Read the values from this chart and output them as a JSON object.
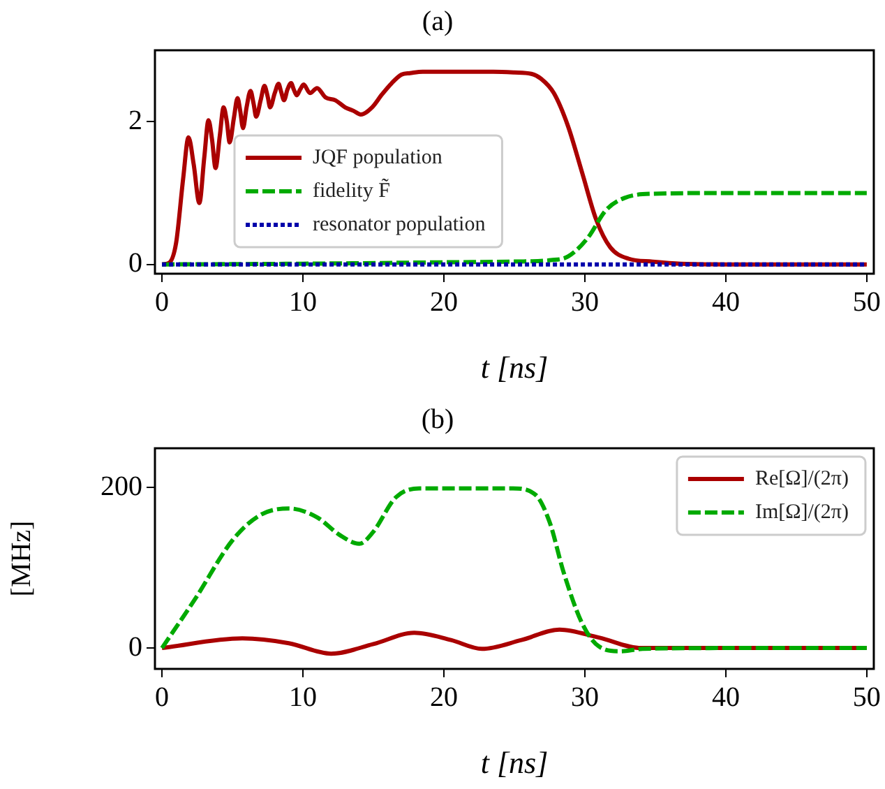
{
  "chart_data": [
    {
      "type": "line",
      "title": "(a)",
      "xlabel": "t [ns]",
      "xlim": [
        -0.5,
        50.5
      ],
      "xticks": [
        0,
        10,
        20,
        30,
        40,
        50
      ],
      "ylim": [
        -0.13,
        3.0
      ],
      "yticks": [
        0,
        2
      ],
      "grid": false,
      "legend": "lower left",
      "marker": "none",
      "series": [
        {
          "name": "JQF population",
          "color": "#aa0000",
          "line_style": "solid",
          "x": [
            0,
            0.5,
            1,
            1.5,
            1.88,
            2.25,
            2.65,
            3.0,
            3.3,
            3.55,
            3.8,
            4.1,
            4.37,
            4.6,
            4.8,
            5.1,
            5.36,
            5.55,
            5.75,
            6.0,
            6.28,
            6.5,
            6.68,
            7.0,
            7.27,
            7.5,
            7.67,
            8.0,
            8.27,
            8.45,
            8.66,
            8.9,
            9.16,
            9.35,
            9.56,
            9.8,
            10.05,
            10.5,
            11,
            11.6,
            12.3,
            13,
            13.6,
            14.1,
            14.9,
            15.6,
            16.3,
            17,
            17.6,
            18.5,
            19.5,
            21.5,
            23.5,
            25,
            26.2,
            26.9,
            27.8,
            28.8,
            29.8,
            30.8,
            31.8,
            33.1,
            34.8,
            36.8,
            40,
            45,
            50
          ],
          "values": [
            0,
            0.02,
            0.3,
            1.2,
            1.78,
            1.4,
            0.86,
            1.5,
            2.02,
            1.75,
            1.35,
            1.8,
            2.2,
            2.0,
            1.71,
            2.05,
            2.33,
            2.15,
            1.91,
            2.2,
            2.43,
            2.25,
            2.07,
            2.3,
            2.5,
            2.35,
            2.2,
            2.4,
            2.53,
            2.42,
            2.3,
            2.45,
            2.54,
            2.45,
            2.37,
            2.45,
            2.52,
            2.4,
            2.47,
            2.34,
            2.3,
            2.2,
            2.15,
            2.1,
            2.2,
            2.38,
            2.54,
            2.66,
            2.68,
            2.7,
            2.7,
            2.7,
            2.7,
            2.69,
            2.67,
            2.6,
            2.4,
            1.94,
            1.29,
            0.63,
            0.24,
            0.08,
            0.04,
            0.01,
            0,
            0,
            0
          ]
        },
        {
          "name": "fidelity F̃",
          "color": "#00aa00",
          "line_style": "dashed",
          "x": [
            0,
            10,
            20,
            25,
            27.6,
            28.8,
            30.2,
            31.5,
            32.8,
            34.8,
            40,
            50
          ],
          "values": [
            0,
            0.01,
            0.03,
            0.04,
            0.06,
            0.11,
            0.37,
            0.76,
            0.93,
            0.99,
            1.0,
            1.0
          ]
        },
        {
          "name": "resonator population",
          "color": "#0000aa",
          "line_style": "dotted",
          "x": [
            0,
            50
          ],
          "values": [
            0,
            0
          ]
        }
      ]
    },
    {
      "type": "line",
      "title": "(b)",
      "xlabel": "t [ns]",
      "ylabel": "[MHz]",
      "xlim": [
        -0.5,
        50.5
      ],
      "xticks": [
        0,
        10,
        20,
        30,
        40,
        50
      ],
      "ylim": [
        -26,
        249
      ],
      "yticks": [
        0,
        200
      ],
      "grid": false,
      "legend": "upper right",
      "marker": "none",
      "series": [
        {
          "name": "Re[Ω]/(2π)",
          "color": "#aa0000",
          "line_style": "solid",
          "x": [
            0,
            5.7,
            9,
            12,
            15,
            17.9,
            20.5,
            22.7,
            25.5,
            28.2,
            31,
            34,
            40,
            50
          ],
          "values": [
            0,
            12,
            6,
            -7,
            5,
            19,
            10,
            -1,
            10,
            23,
            13,
            0,
            0,
            0
          ]
        },
        {
          "name": "Im[Ω]/(2π)",
          "color": "#00aa00",
          "line_style": "dashed",
          "x": [
            0,
            2.38,
            5.03,
            7,
            9,
            11,
            12.6,
            14,
            14.95,
            16.6,
            18.25,
            24.9,
            26.5,
            27.5,
            28.5,
            29.8,
            31,
            32.5,
            34.1,
            40,
            50
          ],
          "values": [
            0,
            62,
            135,
            166,
            174,
            163,
            141,
            130,
            144,
            188,
            199,
            199,
            191,
            157,
            94,
            31,
            2,
            -4,
            -1,
            0,
            0
          ]
        }
      ]
    }
  ]
}
